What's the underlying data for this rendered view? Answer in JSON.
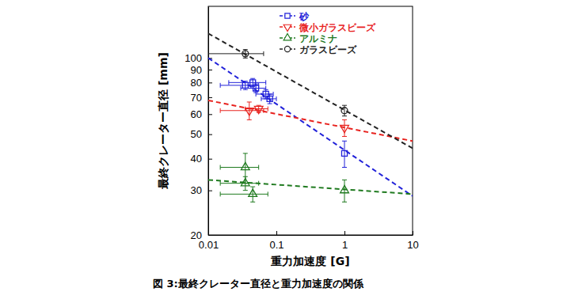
{
  "chart_data": {
    "type": "scatter",
    "title": "図 3:最終クレーター直径と重力加速度の関係",
    "x_label": "重力加速度 [G]",
    "y_label": "最終クレーター直径 [mm]",
    "log": true,
    "legend": "upper-left",
    "xlim": [
      0.01,
      10
    ],
    "ylim": [
      20,
      160
    ],
    "xticks": [
      0.01,
      0.1,
      1,
      10
    ],
    "yticks": [
      20,
      30,
      40,
      50,
      60,
      70,
      80,
      90,
      100
    ],
    "series": [
      {
        "name": "砂",
        "color": "#2121d9",
        "marker": "square",
        "line_style": "dashed",
        "x": [
          0.035,
          0.045,
          0.05,
          0.07,
          0.08,
          1
        ],
        "values": [
          78,
          80,
          76,
          72,
          69,
          42
        ],
        "xerr": [
          0.02,
          0.025,
          0.02,
          0.02,
          0.02,
          0
        ],
        "yerr": [
          3,
          3,
          3,
          3,
          3,
          5
        ],
        "fit": {
          "x": [
            0.01,
            10
          ],
          "values": [
            100,
            28.5
          ]
        }
      },
      {
        "name": "微小ガラスビーズ",
        "color": "#e8231f",
        "marker": "triangle-down",
        "line_style": "dashed",
        "x": [
          0.04,
          0.055,
          1
        ],
        "values": [
          62,
          63,
          53
        ],
        "xerr": [
          0.025,
          0.02,
          0
        ],
        "yerr": [
          5,
          2,
          4
        ],
        "fit": {
          "x": [
            0.01,
            10
          ],
          "values": [
            68,
            47
          ]
        }
      },
      {
        "name": "アルミナ",
        "color": "#1f7a1f",
        "marker": "triangle-up",
        "line_style": "dashed",
        "x": [
          0.035,
          0.035,
          0.045,
          1
        ],
        "values": [
          37,
          32,
          29,
          30
        ],
        "xerr": [
          0.02,
          0.02,
          0.03,
          0
        ],
        "yerr": [
          5,
          2,
          2,
          3
        ],
        "fit": {
          "x": [
            0.01,
            10
          ],
          "values": [
            33,
            29
          ]
        }
      },
      {
        "name": "ガラスビーズ",
        "color": "#222222",
        "marker": "circle",
        "line_style": "dashed",
        "x": [
          0.035,
          1
        ],
        "values": [
          104,
          62
        ],
        "xerr": [
          0.03,
          0
        ],
        "yerr": [
          4,
          3
        ],
        "fit": {
          "x": [
            0.01,
            10
          ],
          "values": [
            125,
            44
          ]
        }
      }
    ]
  }
}
